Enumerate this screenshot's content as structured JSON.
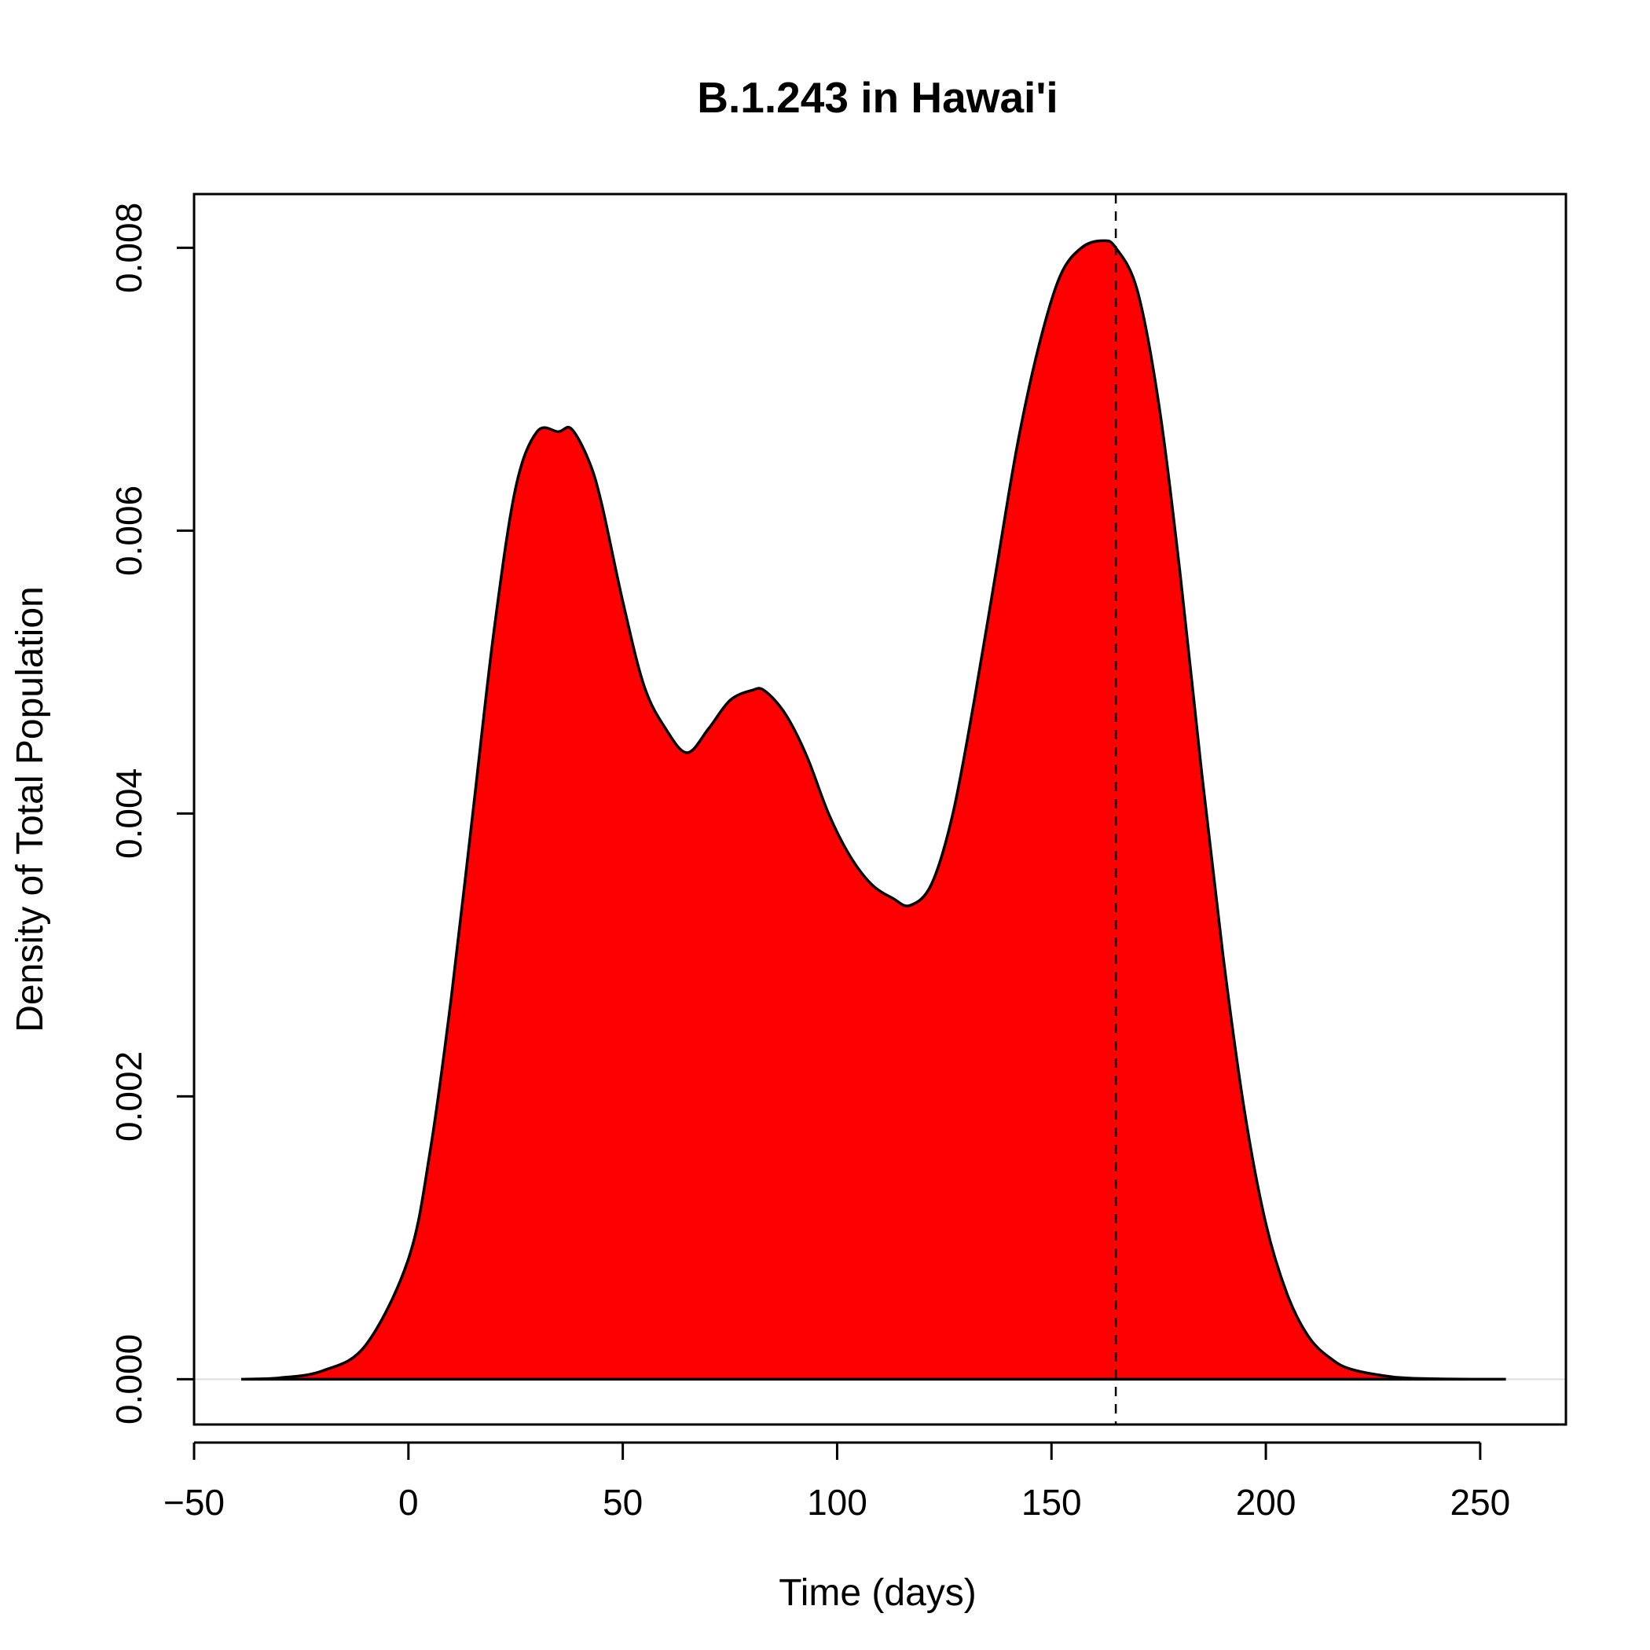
{
  "chart_data": {
    "type": "area",
    "title": "B.1.243 in Hawai'i",
    "xlabel": "Time (days)",
    "ylabel": "Density of Total Population",
    "xlim": [
      -50,
      270
    ],
    "ylim": [
      -0.00032,
      0.00838
    ],
    "x_ticks": [
      -50,
      0,
      50,
      100,
      150,
      200,
      250
    ],
    "x_tick_labels": [
      "−50",
      "0",
      "50",
      "100",
      "150",
      "200",
      "250"
    ],
    "y_ticks": [
      0,
      0.002,
      0.004,
      0.006,
      0.008
    ],
    "y_tick_labels": [
      "0.000",
      "0.002",
      "0.004",
      "0.006",
      "0.008"
    ],
    "grid": false,
    "fill_color": "#ff0000",
    "line_color": "#000000",
    "baseline_color": "#dddddd",
    "vertical_reference": {
      "x": 165,
      "style": "dashed",
      "color": "#000000"
    },
    "series": [
      {
        "x": [
          -39,
          -30,
          -20,
          -10,
          0,
          5,
          10,
          15,
          20,
          25,
          30,
          35,
          38,
          42,
          45,
          50,
          55,
          60,
          65,
          70,
          75,
          80,
          83,
          88,
          93,
          98,
          103,
          108,
          113,
          117,
          122,
          127,
          132,
          137,
          142,
          147,
          152,
          157,
          162,
          165,
          170,
          175,
          180,
          185,
          190,
          195,
          200,
          205,
          210,
          215,
          220,
          230,
          240,
          250,
          256
        ],
        "y": [
          0,
          1e-05,
          6e-05,
          0.00024,
          0.00085,
          0.0016,
          0.0027,
          0.004,
          0.0053,
          0.0063,
          0.0067,
          0.0067,
          0.00672,
          0.0065,
          0.0062,
          0.0055,
          0.0049,
          0.0046,
          0.00443,
          0.0046,
          0.0048,
          0.00487,
          0.00487,
          0.0047,
          0.0044,
          0.004,
          0.0037,
          0.0035,
          0.0034,
          0.00335,
          0.0035,
          0.004,
          0.0048,
          0.0057,
          0.0066,
          0.0073,
          0.0078,
          0.008,
          0.00805,
          0.008,
          0.0077,
          0.0069,
          0.0057,
          0.0043,
          0.003,
          0.0019,
          0.0011,
          0.0006,
          0.0003,
          0.00015,
          7e-05,
          1.5e-05,
          3e-06,
          0,
          0
        ]
      }
    ]
  }
}
